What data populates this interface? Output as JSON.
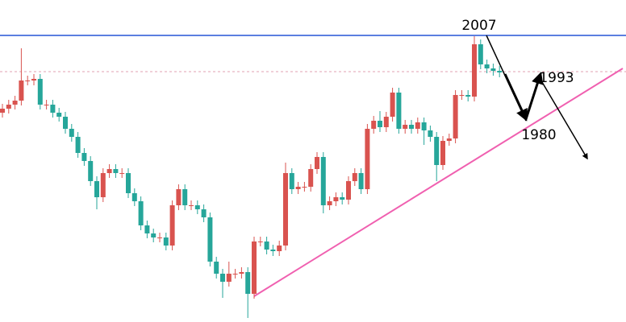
{
  "chart_data": {
    "type": "candlestick",
    "annotations": [
      "2007",
      "1993",
      "1980"
    ],
    "up_color": "#d9534f",
    "down_color": "#26a69a",
    "ylim": [
      0,
      400
    ],
    "open": [
      260,
      265,
      270,
      275,
      300,
      300,
      302,
      270,
      270,
      260,
      255,
      240,
      230,
      210,
      200,
      175,
      155,
      185,
      190,
      185,
      185,
      160,
      150,
      120,
      110,
      105,
      105,
      95,
      145,
      165,
      145,
      145,
      140,
      130,
      75,
      60,
      50,
      60,
      60,
      62,
      35,
      100,
      100,
      90,
      88,
      95,
      185,
      165,
      168,
      168,
      190,
      205,
      145,
      150,
      155,
      152,
      175,
      185,
      165,
      240,
      250,
      242,
      255,
      285,
      240,
      245,
      240,
      248,
      238,
      230,
      195,
      225,
      228,
      282,
      282,
      280,
      345,
      320,
      315,
      312
    ],
    "high": [
      271,
      276,
      281,
      340,
      306,
      308,
      308,
      276,
      276,
      266,
      261,
      246,
      236,
      216,
      206,
      181,
      191,
      196,
      196,
      191,
      191,
      166,
      156,
      126,
      116,
      111,
      111,
      151,
      171,
      171,
      151,
      151,
      146,
      136,
      81,
      66,
      75,
      66,
      68,
      68,
      106,
      106,
      106,
      96,
      101,
      198,
      191,
      174,
      174,
      196,
      211,
      211,
      156,
      161,
      161,
      181,
      191,
      191,
      246,
      256,
      262,
      261,
      291,
      291,
      251,
      251,
      254,
      254,
      244,
      236,
      231,
      234,
      288,
      288,
      288,
      355,
      351,
      326,
      321,
      318
    ],
    "low": [
      254,
      259,
      264,
      269,
      294,
      294,
      264,
      264,
      254,
      249,
      234,
      224,
      204,
      194,
      169,
      140,
      149,
      179,
      179,
      179,
      154,
      144,
      114,
      104,
      99,
      99,
      89,
      89,
      139,
      139,
      139,
      134,
      124,
      69,
      54,
      30,
      44,
      54,
      54,
      5,
      29,
      94,
      84,
      82,
      82,
      89,
      159,
      159,
      162,
      162,
      184,
      135,
      139,
      144,
      146,
      146,
      169,
      159,
      159,
      234,
      236,
      236,
      249,
      234,
      234,
      234,
      234,
      220,
      224,
      175,
      189,
      219,
      222,
      276,
      274,
      274,
      314,
      309,
      306,
      304
    ],
    "close": [
      265,
      270,
      275,
      300,
      300,
      302,
      270,
      270,
      260,
      255,
      240,
      230,
      210,
      200,
      175,
      155,
      185,
      190,
      185,
      185,
      160,
      150,
      120,
      110,
      105,
      105,
      95,
      145,
      165,
      145,
      145,
      140,
      130,
      75,
      60,
      50,
      60,
      60,
      62,
      35,
      100,
      100,
      90,
      88,
      95,
      185,
      165,
      168,
      168,
      190,
      205,
      145,
      150,
      155,
      152,
      175,
      185,
      165,
      240,
      250,
      242,
      255,
      285,
      240,
      245,
      240,
      248,
      238,
      230,
      195,
      225,
      228,
      282,
      282,
      280,
      345,
      320,
      315,
      312,
      310
    ]
  }
}
